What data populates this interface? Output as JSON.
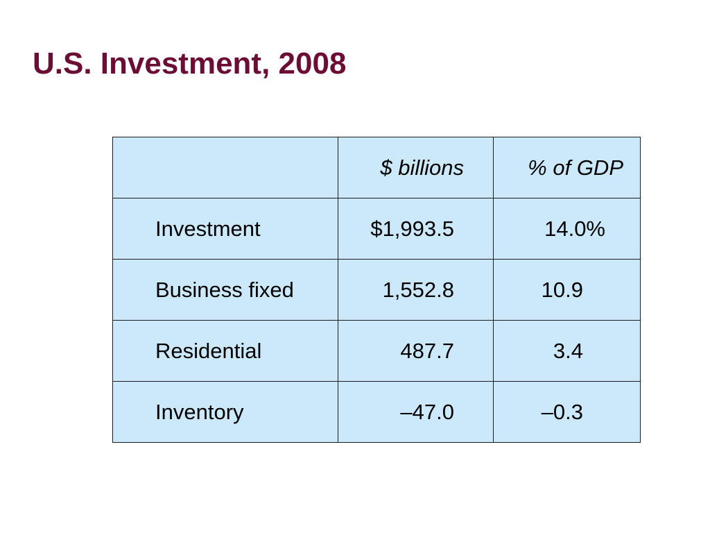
{
  "slide": {
    "title": "U.S. Investment, 2008"
  },
  "table": {
    "header": {
      "col1": "",
      "col2": "$ billions",
      "col3": "% of GDP"
    },
    "rows": [
      {
        "label": "Investment",
        "billions": "$1,993.5",
        "pct_gdp": "14.0%"
      },
      {
        "label": "Business fixed",
        "billions": "1,552.8",
        "pct_gdp": "10.9"
      },
      {
        "label": "Residential",
        "billions": "487.7",
        "pct_gdp": "3.4"
      },
      {
        "label": "Inventory",
        "billions": "–47.0",
        "pct_gdp": "–0.3"
      }
    ]
  }
}
